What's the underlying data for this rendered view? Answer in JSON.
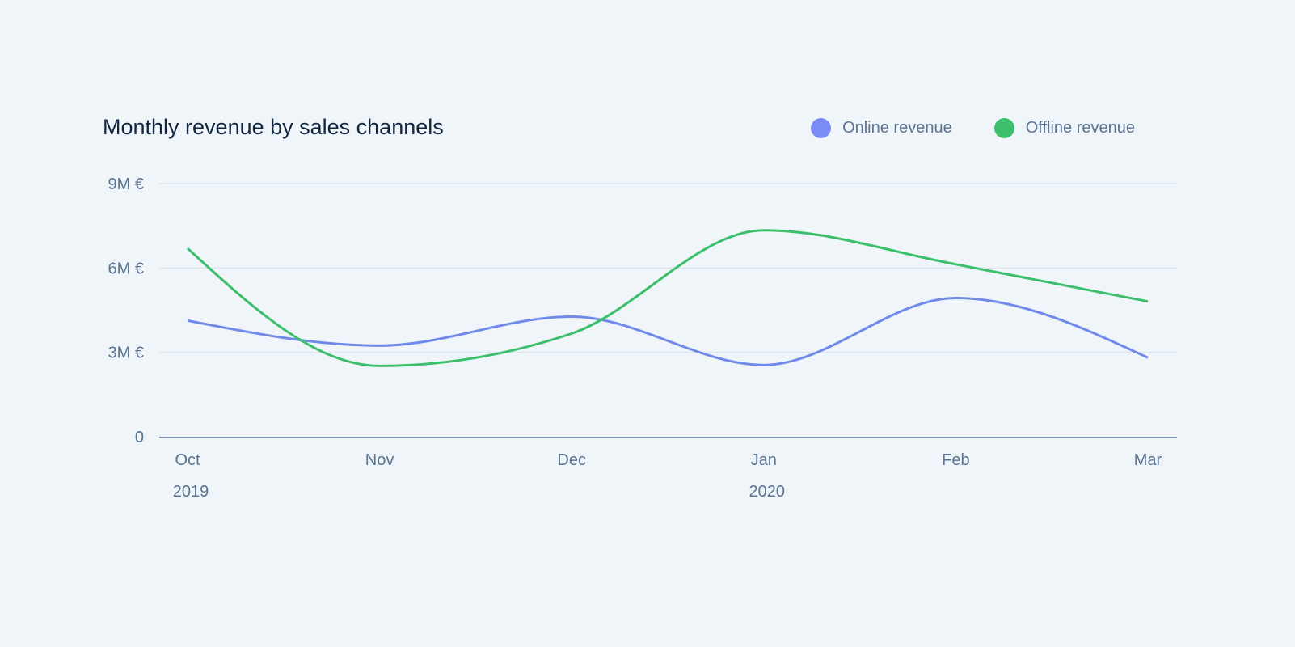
{
  "chart_data": {
    "type": "line",
    "title": "Monthly revenue by sales channels",
    "categories": [
      "Oct",
      "Nov",
      "Dec",
      "Jan",
      "Feb",
      "Mar"
    ],
    "year_labels": [
      {
        "category": "Oct",
        "label": "2019"
      },
      {
        "category": "Jan",
        "label": "2020"
      }
    ],
    "y_ticks": [
      {
        "value": 0,
        "label": "0"
      },
      {
        "value": 3,
        "label": "3M €"
      },
      {
        "value": 6,
        "label": "6M €"
      },
      {
        "value": 9,
        "label": "9M €"
      }
    ],
    "ylim": [
      0,
      9
    ],
    "y_unit": "M €",
    "grid": true,
    "legend_position": "top-right",
    "series": [
      {
        "name": "Online revenue",
        "color": "#7b8cf8",
        "line_color": "#6f8ae8",
        "values": [
          4.13,
          3.24,
          4.27,
          2.55,
          4.93,
          2.81
        ]
      },
      {
        "name": "Offline revenue",
        "color": "#3bbf6a",
        "line_color": "#3bbf6a",
        "values": [
          6.7,
          2.52,
          3.67,
          7.34,
          6.13,
          4.81
        ]
      }
    ],
    "curve": "smooth"
  }
}
